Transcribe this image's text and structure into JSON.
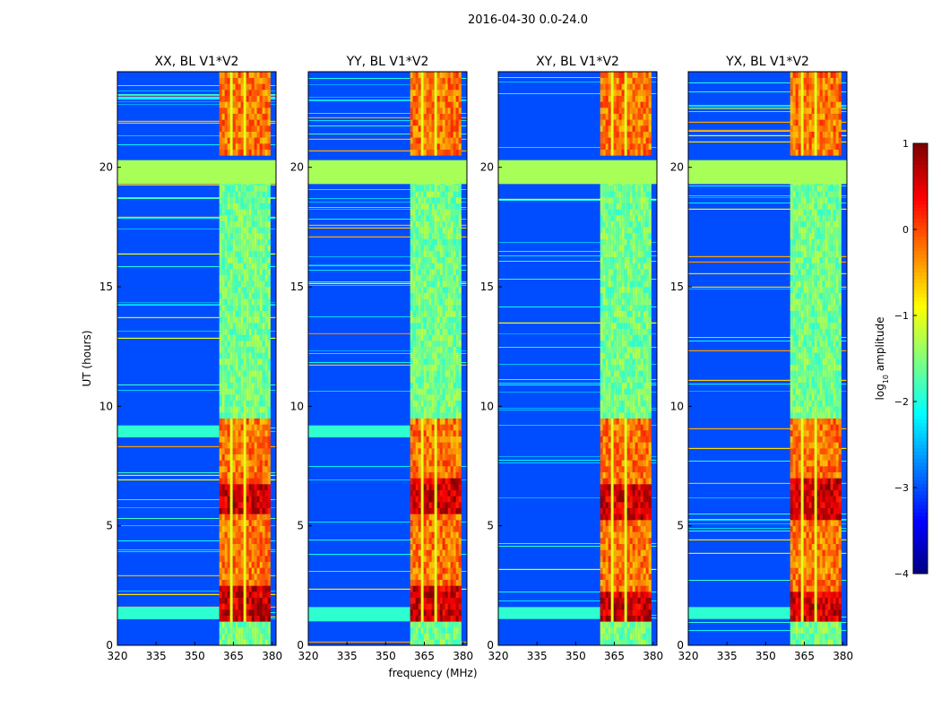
{
  "figure": {
    "suptitle": "2016-04-30 0.0-24.0",
    "xlabel": "frequency (MHz)",
    "ylabel": "UT (hours)"
  },
  "colorbar": {
    "label_prefix": "log",
    "label_sub": "10",
    "label_suffix": " amplitude",
    "range": [
      -4,
      1
    ],
    "ticks": [
      1,
      0,
      -1,
      -2,
      -3,
      -4
    ],
    "tick_labels": [
      "1",
      "0",
      "−1",
      "−2",
      "−3",
      "−4"
    ],
    "colormap": "jet"
  },
  "chart_data": [
    {
      "type": "heatmap",
      "title": "XX, BL V1*V2",
      "xlim": [
        320,
        381.5
      ],
      "ylim": [
        0,
        24
      ],
      "xticks": [
        320,
        335,
        350,
        365,
        380
      ],
      "yticks": [
        0,
        5,
        10,
        15,
        20
      ],
      "background_log_amplitude": -3,
      "band_log_amplitude": -1.5,
      "band_freq_range": [
        359.5,
        378.5
      ],
      "flagged_ut_range": [
        19.3,
        20.3
      ],
      "flagged_log_amplitude": -1.3,
      "strong_ut_ranges": [
        [
          0.9,
          2.5
        ],
        [
          5.5,
          6.6
        ]
      ],
      "moderate_ut_ranges": [
        [
          2.5,
          5.5
        ],
        [
          6.6,
          9.4
        ],
        [
          20.3,
          24
        ]
      ],
      "broadband_ut_ranges": [
        [
          1.1,
          1.6
        ],
        [
          8.7,
          9.2
        ]
      ]
    },
    {
      "type": "heatmap",
      "title": "YY, BL V1*V2",
      "xlim": [
        320,
        381.5
      ],
      "ylim": [
        0,
        24
      ],
      "xticks": [
        320,
        335,
        350,
        365,
        380
      ],
      "yticks": [
        0,
        5,
        10,
        15,
        20
      ],
      "background_log_amplitude": -3,
      "band_log_amplitude": -1.5,
      "band_freq_range": [
        359.5,
        378.5
      ],
      "flagged_ut_range": [
        19.3,
        20.3
      ],
      "flagged_log_amplitude": -1.3,
      "strong_ut_ranges": [
        [
          0.9,
          2.5
        ],
        [
          5.5,
          6.9
        ]
      ],
      "moderate_ut_ranges": [
        [
          2.5,
          5.5
        ],
        [
          6.9,
          9.4
        ],
        [
          20.3,
          24
        ]
      ],
      "broadband_ut_ranges": [
        [
          1.0,
          1.6
        ],
        [
          8.7,
          9.2
        ]
      ]
    },
    {
      "type": "heatmap",
      "title": "XY, BL V1*V2",
      "xlim": [
        320,
        381.5
      ],
      "ylim": [
        0,
        24
      ],
      "xticks": [
        320,
        335,
        350,
        365,
        380
      ],
      "yticks": [
        0,
        5,
        10,
        15,
        20
      ],
      "background_log_amplitude": -3,
      "band_log_amplitude": -1.5,
      "band_freq_range": [
        359.5,
        378.5
      ],
      "flagged_ut_range": [
        19.3,
        20.3
      ],
      "flagged_log_amplitude": -1.3,
      "strong_ut_ranges": [
        [
          0.9,
          2.2
        ],
        [
          5.2,
          6.6
        ]
      ],
      "moderate_ut_ranges": [
        [
          2.2,
          5.2
        ],
        [
          6.6,
          9.4
        ],
        [
          20.3,
          24
        ]
      ],
      "broadband_ut_ranges": [
        [
          1.1,
          1.6
        ]
      ]
    },
    {
      "type": "heatmap",
      "title": "YX, BL V1*V2",
      "xlim": [
        320,
        381.5
      ],
      "ylim": [
        0,
        24
      ],
      "xticks": [
        320,
        335,
        350,
        365,
        380
      ],
      "yticks": [
        0,
        5,
        10,
        15,
        20
      ],
      "background_log_amplitude": -3,
      "band_log_amplitude": -1.5,
      "band_freq_range": [
        359.5,
        378.5
      ],
      "flagged_ut_range": [
        19.3,
        20.3
      ],
      "flagged_log_amplitude": -1.3,
      "strong_ut_ranges": [
        [
          0.9,
          2.2
        ],
        [
          5.2,
          6.9
        ]
      ],
      "moderate_ut_ranges": [
        [
          2.2,
          5.2
        ],
        [
          6.9,
          9.4
        ],
        [
          20.3,
          24
        ]
      ],
      "broadband_ut_ranges": [
        [
          1.1,
          1.6
        ]
      ]
    }
  ]
}
